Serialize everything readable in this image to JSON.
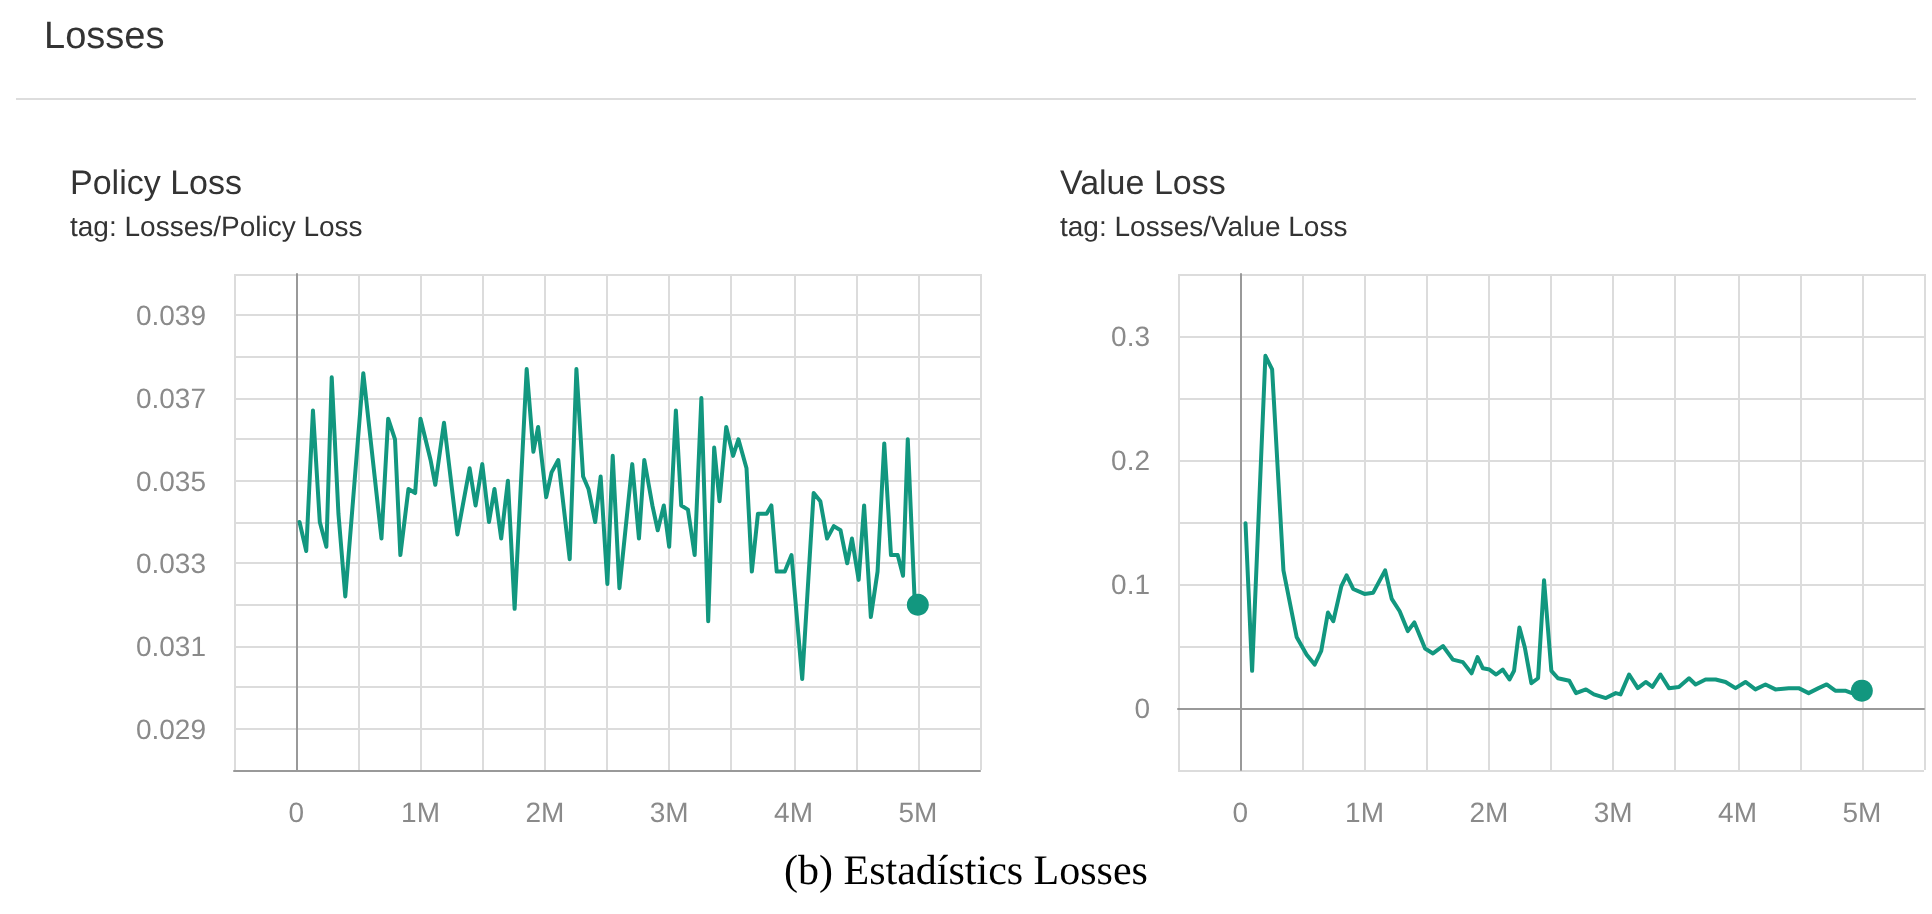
{
  "chart_data": [
    {
      "type": "line",
      "title": "Policy Loss",
      "subtitle": "tag: Losses/Policy Loss",
      "annotations": [
        "Losses"
      ],
      "grid": true,
      "xlim": [
        -500000,
        5500000
      ],
      "xticks": [
        {
          "value": -500000,
          "label": null
        },
        0,
        {
          "value": 500000,
          "label": null
        },
        {
          "value": 1000000,
          "label": "1M"
        },
        {
          "value": 1500000,
          "label": null
        },
        {
          "value": 2000000,
          "label": "2M"
        },
        {
          "value": 2500000,
          "label": null
        },
        {
          "value": 3000000,
          "label": "3M"
        },
        {
          "value": 3500000,
          "label": null
        },
        {
          "value": 4000000,
          "label": "4M"
        },
        {
          "value": 4500000,
          "label": null
        },
        {
          "value": 5000000,
          "label": "5M"
        },
        {
          "value": 5500000,
          "label": null
        }
      ],
      "ylim": [
        0.028,
        0.04
      ],
      "yticks": [
        {
          "value": 0.028,
          "label": null
        },
        0.029,
        {
          "value": 0.03,
          "label": null
        },
        0.031,
        {
          "value": 0.032,
          "label": null
        },
        0.033,
        {
          "value": 0.034,
          "label": null
        },
        0.035,
        {
          "value": 0.036,
          "label": null
        },
        0.037,
        {
          "value": 0.038,
          "label": null
        },
        0.039,
        {
          "value": 0.04,
          "label": null
        }
      ],
      "series": [
        {
          "color": "#12977f",
          "x": [
            27000,
            81000,
            135000,
            190000,
            243000,
            286000,
            340000,
            395000,
            540000,
            686000,
            740000,
            795000,
            838000,
            903000,
            957000,
            1000000,
            1081000,
            1119000,
            1189000,
            1297000,
            1395000,
            1443000,
            1497000,
            1551000,
            1595000,
            1649000,
            1703000,
            1757000,
            1854000,
            1908000,
            1946000,
            2011000,
            2054000,
            2108000,
            2200000,
            2254000,
            2308000,
            2351000,
            2405000,
            2449000,
            2503000,
            2546000,
            2600000,
            2703000,
            2757000,
            2800000,
            2865000,
            2908000,
            2957000,
            3000000,
            3054000,
            3097000,
            3151000,
            3205000,
            3259000,
            3314000,
            3362000,
            3405000,
            3459000,
            3514000,
            3557000,
            3622000,
            3665000,
            3714000,
            3784000,
            3822000,
            3865000,
            3930000,
            3984000,
            4070000,
            4162000,
            4216000,
            4270000,
            4324000,
            4378000,
            4432000,
            4470000,
            4524000,
            4568000,
            4622000,
            4676000,
            4730000,
            4784000,
            4838000,
            4881000,
            4919000,
            4973000,
            5000000
          ],
          "values": [
            0.034,
            0.0333,
            0.0367,
            0.034,
            0.0334,
            0.0375,
            0.0342,
            0.0322,
            0.0376,
            0.0336,
            0.0365,
            0.036,
            0.0332,
            0.0348,
            0.0347,
            0.0365,
            0.0355,
            0.0349,
            0.0364,
            0.0337,
            0.0353,
            0.0344,
            0.0354,
            0.034,
            0.0348,
            0.0336,
            0.035,
            0.0319,
            0.0377,
            0.0357,
            0.0363,
            0.0346,
            0.0352,
            0.0355,
            0.0331,
            0.0377,
            0.0351,
            0.0348,
            0.034,
            0.0351,
            0.0325,
            0.0356,
            0.0324,
            0.0354,
            0.0336,
            0.0355,
            0.0344,
            0.0338,
            0.0344,
            0.0334,
            0.0367,
            0.0344,
            0.0343,
            0.0332,
            0.037,
            0.0316,
            0.0358,
            0.0345,
            0.0363,
            0.0356,
            0.036,
            0.0353,
            0.0328,
            0.0342,
            0.0342,
            0.0344,
            0.0328,
            0.0328,
            0.0332,
            0.0302,
            0.0347,
            0.0345,
            0.0336,
            0.0339,
            0.0338,
            0.033,
            0.0336,
            0.0326,
            0.0344,
            0.0317,
            0.0328,
            0.0359,
            0.0332,
            0.0332,
            0.0327,
            0.036,
            0.0322,
            0.032
          ]
        }
      ]
    },
    {
      "type": "line",
      "title": "Value Loss",
      "subtitle": "tag: Losses/Value Loss",
      "annotations": [
        "(b) Estadístics Losses"
      ],
      "grid": true,
      "xlim": [
        -500000,
        5500000
      ],
      "xticks": [
        {
          "value": -500000,
          "label": null
        },
        0,
        {
          "value": 500000,
          "label": null
        },
        {
          "value": 1000000,
          "label": "1M"
        },
        {
          "value": 1500000,
          "label": null
        },
        {
          "value": 2000000,
          "label": "2M"
        },
        {
          "value": 2500000,
          "label": null
        },
        {
          "value": 3000000,
          "label": "3M"
        },
        {
          "value": 3500000,
          "label": null
        },
        {
          "value": 4000000,
          "label": "4M"
        },
        {
          "value": 4500000,
          "label": null
        },
        {
          "value": 5000000,
          "label": "5M"
        },
        {
          "value": 5500000,
          "label": null
        }
      ],
      "ylim": [
        -0.05,
        0.35
      ],
      "yticks": [
        {
          "value": -0.05,
          "label": null
        },
        0,
        {
          "value": 0.05,
          "label": null
        },
        0.1,
        {
          "value": 0.15,
          "label": null
        },
        0.2,
        {
          "value": 0.25,
          "label": null
        },
        0.3,
        {
          "value": 0.35,
          "label": null
        }
      ],
      "series": [
        {
          "color": "#12977f",
          "x": [
            43000,
            96000,
            203000,
            257000,
            348000,
            455000,
            535000,
            599000,
            652000,
            706000,
            749000,
            813000,
            856000,
            909000,
            1000000,
            1070000,
            1166000,
            1219000,
            1283000,
            1348000,
            1401000,
            1487000,
            1551000,
            1631000,
            1711000,
            1791000,
            1861000,
            1909000,
            1952000,
            2005000,
            2059000,
            2112000,
            2166000,
            2203000,
            2246000,
            2289000,
            2342000,
            2396000,
            2444000,
            2503000,
            2556000,
            2647000,
            2701000,
            2781000,
            2845000,
            2941000,
            3021000,
            3059000,
            3128000,
            3198000,
            3262000,
            3316000,
            3380000,
            3449000,
            3529000,
            3610000,
            3663000,
            3743000,
            3824000,
            3904000,
            3984000,
            4064000,
            4144000,
            4225000,
            4305000,
            4412000,
            4492000,
            4572000,
            4652000,
            4717000,
            4786000,
            4866000,
            4920000,
            5000000
          ],
          "values": [
            0.149,
            0.03,
            0.284,
            0.273,
            0.111,
            0.057,
            0.043,
            0.035,
            0.046,
            0.077,
            0.07,
            0.098,
            0.107,
            0.096,
            0.092,
            0.093,
            0.111,
            0.088,
            0.078,
            0.062,
            0.069,
            0.048,
            0.044,
            0.05,
            0.039,
            0.037,
            0.028,
            0.041,
            0.032,
            0.031,
            0.027,
            0.031,
            0.023,
            0.03,
            0.065,
            0.049,
            0.02,
            0.024,
            0.103,
            0.03,
            0.024,
            0.022,
            0.012,
            0.015,
            0.011,
            0.008,
            0.012,
            0.011,
            0.027,
            0.016,
            0.021,
            0.017,
            0.027,
            0.016,
            0.017,
            0.024,
            0.019,
            0.023,
            0.023,
            0.021,
            0.016,
            0.021,
            0.015,
            0.019,
            0.015,
            0.016,
            0.016,
            0.012,
            0.016,
            0.019,
            0.014,
            0.014,
            0.012,
            0.014
          ]
        }
      ]
    }
  ]
}
